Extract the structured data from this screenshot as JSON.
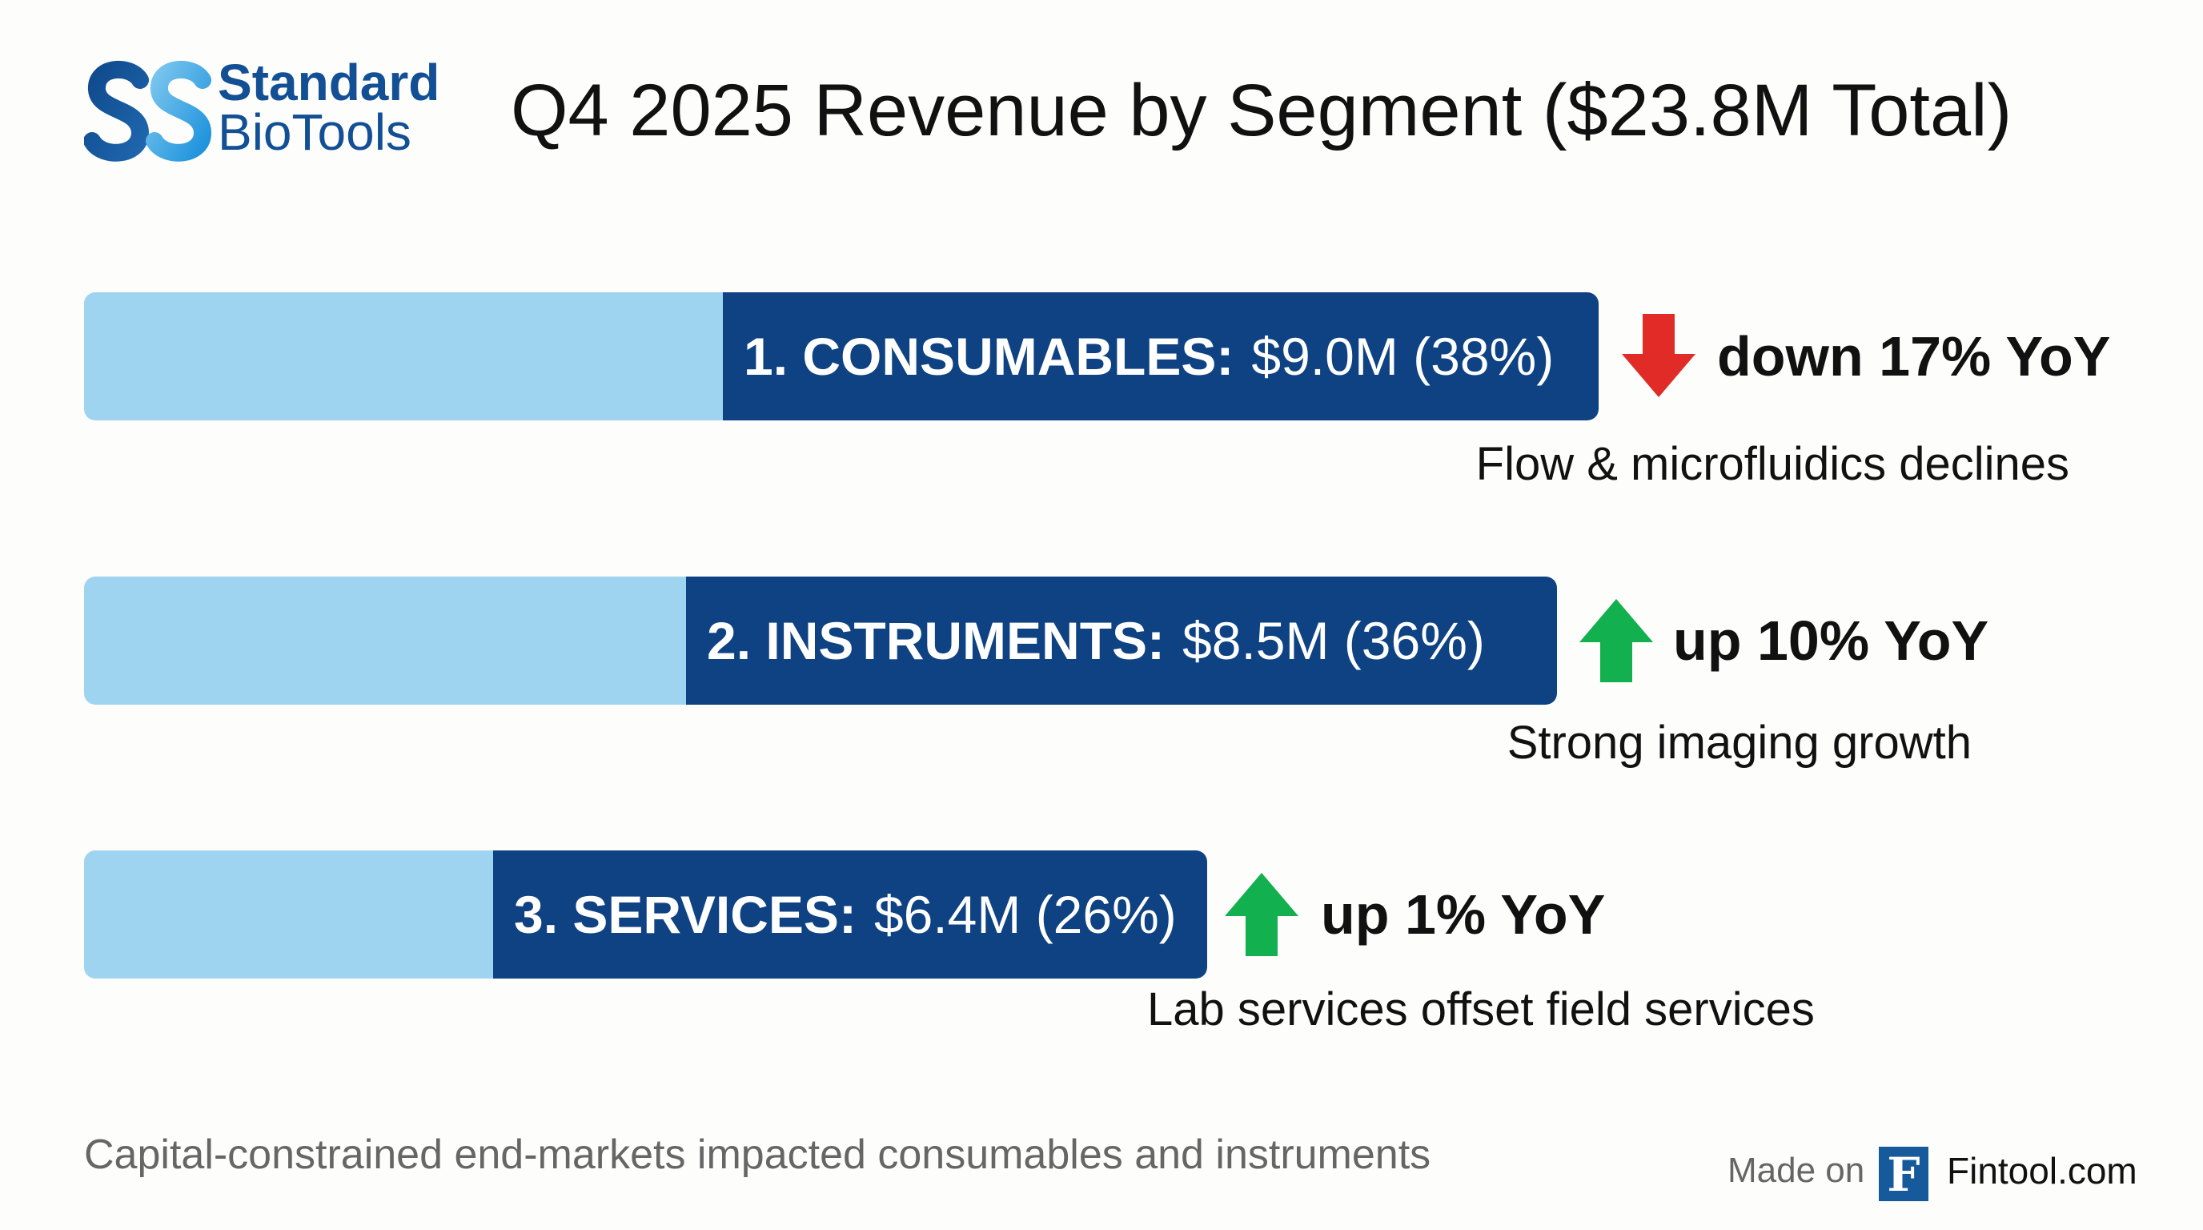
{
  "logo": {
    "line1": "Standard",
    "line2": "BioTools",
    "colors": {
      "dark": "#124f94",
      "light": "#3aa3e3"
    }
  },
  "title": "Q4 2025 Revenue by Segment ($23.8M Total)",
  "chart_data": {
    "type": "bar",
    "orientation": "horizontal",
    "title": "Q4 2025 Revenue by Segment ($23.8M Total)",
    "categories": [
      "CONSUMABLES",
      "INSTRUMENTS",
      "SERVICES"
    ],
    "values": [
      9.0,
      8.5,
      6.4
    ],
    "unit": "$M",
    "shares_pct": [
      38,
      36,
      26
    ],
    "yoy_change_pct": [
      -17,
      10,
      1
    ],
    "colors": {
      "bar_light": "#9fd4f1",
      "bar_dark": "#0e4282",
      "down": "#e02b27",
      "up": "#12b04f"
    }
  },
  "segments": [
    {
      "label": "1. CONSUMABLES:",
      "value": "$9.0M (38%)",
      "direction": "down",
      "icon": "arrow-down-icon",
      "yoy": "down 17% YoY",
      "note": "Flow & microfluidics declines"
    },
    {
      "label": "2. INSTRUMENTS:",
      "value": "$8.5M (36%)",
      "direction": "up",
      "icon": "arrow-up-icon",
      "yoy": "up 10% YoY",
      "note": "Strong imaging growth"
    },
    {
      "label": "3. SERVICES:",
      "value": "$6.4M (26%)",
      "direction": "up",
      "icon": "arrow-up-icon",
      "yoy": "up 1% YoY",
      "note": "Lab services offset field services"
    }
  ],
  "footer": {
    "note": "Capital-constrained end-markets impacted consumables and instruments",
    "made_on": "Made on",
    "brand_letter": "F",
    "brand": "Fintool.com"
  }
}
